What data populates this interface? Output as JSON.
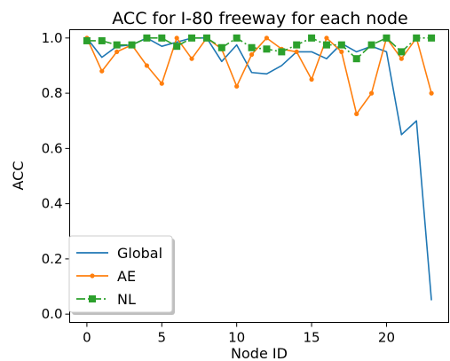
{
  "chart_data": {
    "type": "line",
    "title": "ACC for I-80 freeway for each node",
    "xlabel": "Node ID",
    "ylabel": "ACC",
    "xlim": [
      -1.15,
      24.15
    ],
    "ylim": [
      -0.03,
      1.03
    ],
    "xticks": [
      0,
      5,
      10,
      15,
      20
    ],
    "yticks": [
      0.0,
      0.2,
      0.4,
      0.6,
      0.8,
      1.0
    ],
    "grid": false,
    "legend_position": "lower-left",
    "x": [
      0,
      1,
      2,
      3,
      4,
      5,
      6,
      7,
      8,
      9,
      10,
      11,
      12,
      13,
      14,
      15,
      16,
      17,
      18,
      19,
      20,
      21,
      22,
      23
    ],
    "series": [
      {
        "name": "Global",
        "color": "#1f77b4",
        "marker": "none",
        "line_style": "solid",
        "values": [
          1.0,
          0.93,
          0.97,
          0.975,
          1.0,
          0.97,
          0.985,
          1.0,
          1.0,
          0.915,
          0.975,
          0.875,
          0.87,
          0.9,
          0.95,
          0.95,
          0.925,
          0.98,
          0.95,
          0.97,
          0.95,
          0.65,
          0.7,
          0.05
        ]
      },
      {
        "name": "AE",
        "color": "#ff7f0e",
        "marker": "dot",
        "line_style": "solid",
        "values": [
          1.0,
          0.88,
          0.95,
          0.975,
          0.9,
          0.835,
          1.0,
          0.925,
          1.0,
          0.96,
          0.825,
          0.94,
          1.0,
          0.96,
          0.95,
          0.85,
          1.0,
          0.95,
          0.725,
          0.8,
          1.0,
          0.925,
          1.0,
          0.8
        ]
      },
      {
        "name": "NL",
        "color": "#2ca02c",
        "marker": "square",
        "line_style": "dashdot",
        "values": [
          0.99,
          0.99,
          0.975,
          0.975,
          1.0,
          1.0,
          0.97,
          1.0,
          1.0,
          0.965,
          1.0,
          0.965,
          0.96,
          0.95,
          0.975,
          1.0,
          0.975,
          0.975,
          0.925,
          0.975,
          1.0,
          0.95,
          1.0,
          1.0
        ]
      }
    ]
  }
}
